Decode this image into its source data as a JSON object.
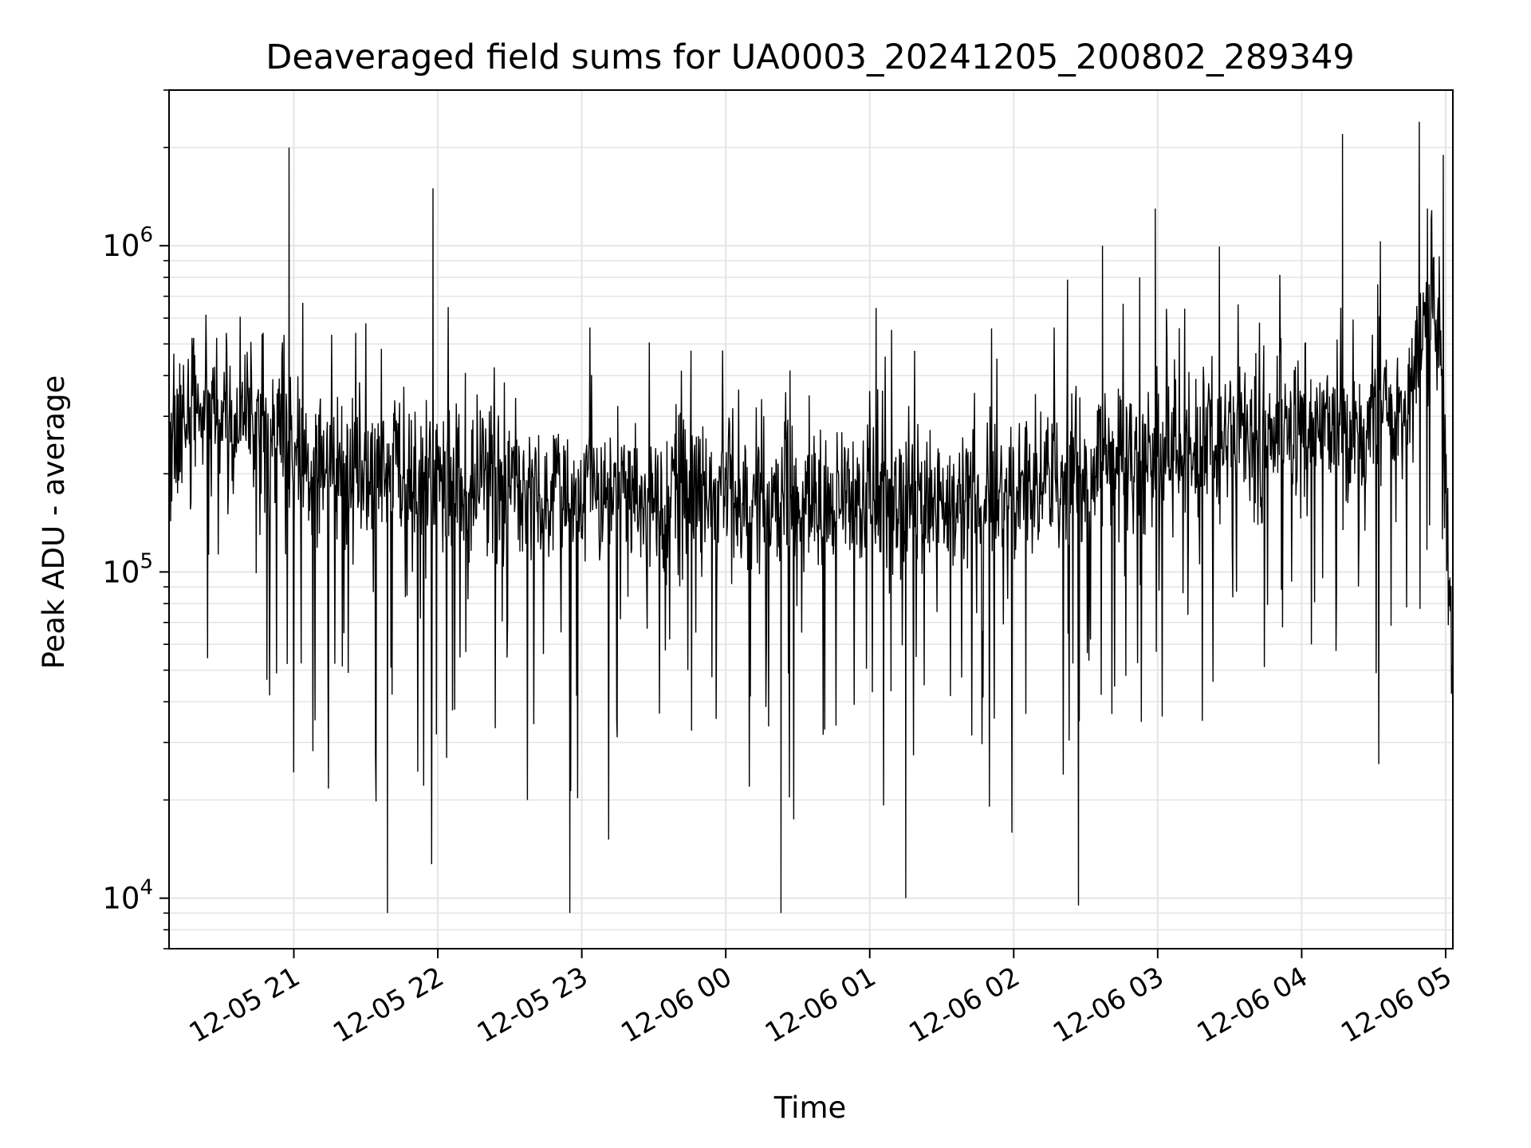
{
  "chart_data": {
    "type": "line",
    "title": "Deaveraged field sums for UA0003_20241205_200802_289349",
    "xlabel": "Time",
    "ylabel": "Peak ADU - average",
    "yscale": "log",
    "ylim": [
      7000,
      3000000
    ],
    "xlim": [
      "2024-12-05 20:08",
      "2024-12-06 05:03"
    ],
    "grid": true,
    "colors": {
      "line": "#000000",
      "grid": "#e5e5e5",
      "axes": "#000000"
    },
    "x_tick_labels": [
      "12-05 21",
      "12-05 22",
      "12-05 23",
      "12-06 00",
      "12-06 01",
      "12-06 02",
      "12-06 03",
      "12-06 04",
      "12-06 05"
    ],
    "x_ticks": [
      "2024-12-05 21:00",
      "2024-12-05 22:00",
      "2024-12-05 23:00",
      "2024-12-06 00:00",
      "2024-12-06 01:00",
      "2024-12-06 02:00",
      "2024-12-06 03:00",
      "2024-12-06 04:00",
      "2024-12-06 05:00"
    ],
    "y_tick_labels": [
      {
        "base": "10",
        "exp": "4",
        "value": 10000
      },
      {
        "base": "10",
        "exp": "5",
        "value": 100000
      },
      {
        "base": "10",
        "exp": "6",
        "value": 1000000
      }
    ],
    "series": [
      {
        "x": [
          "2024-12-05 20:08",
          "2024-12-05 20:15",
          "2024-12-05 20:20",
          "2024-12-05 20:25",
          "2024-12-05 20:30",
          "2024-12-05 20:35",
          "2024-12-05 20:40",
          "2024-12-05 20:45",
          "2024-12-05 20:50",
          "2024-12-05 20:55",
          "2024-12-05 21:00",
          "2024-12-05 21:05",
          "2024-12-05 21:10",
          "2024-12-05 21:15",
          "2024-12-05 21:20",
          "2024-12-05 21:25",
          "2024-12-05 21:30",
          "2024-12-05 21:35",
          "2024-12-05 21:40",
          "2024-12-05 21:45",
          "2024-12-05 21:50",
          "2024-12-05 21:55",
          "2024-12-05 22:00",
          "2024-12-05 22:05",
          "2024-12-05 22:10",
          "2024-12-05 22:15",
          "2024-12-05 22:20",
          "2024-12-05 22:25",
          "2024-12-05 22:30",
          "2024-12-05 22:35",
          "2024-12-05 22:40",
          "2024-12-05 22:45",
          "2024-12-05 22:50",
          "2024-12-05 22:55",
          "2024-12-05 23:00",
          "2024-12-05 23:05",
          "2024-12-05 23:10",
          "2024-12-05 23:15",
          "2024-12-05 23:20",
          "2024-12-05 23:25",
          "2024-12-05 23:30",
          "2024-12-05 23:35",
          "2024-12-05 23:40",
          "2024-12-05 23:45",
          "2024-12-05 23:50",
          "2024-12-05 23:55",
          "2024-12-06 00:00",
          "2024-12-06 00:05",
          "2024-12-06 00:10",
          "2024-12-06 00:15",
          "2024-12-06 00:20",
          "2024-12-06 00:25",
          "2024-12-06 00:30",
          "2024-12-06 00:35",
          "2024-12-06 00:40",
          "2024-12-06 00:45",
          "2024-12-06 00:50",
          "2024-12-06 00:55",
          "2024-12-06 01:00",
          "2024-12-06 01:05",
          "2024-12-06 01:10",
          "2024-12-06 01:15",
          "2024-12-06 01:20",
          "2024-12-06 01:25",
          "2024-12-06 01:30",
          "2024-12-06 01:35",
          "2024-12-06 01:40",
          "2024-12-06 01:45",
          "2024-12-06 01:50",
          "2024-12-06 01:55",
          "2024-12-06 02:00",
          "2024-12-06 02:05",
          "2024-12-06 02:10",
          "2024-12-06 02:15",
          "2024-12-06 02:20",
          "2024-12-06 02:25",
          "2024-12-06 02:30",
          "2024-12-06 02:35",
          "2024-12-06 02:40",
          "2024-12-06 02:45",
          "2024-12-06 02:50",
          "2024-12-06 02:55",
          "2024-12-06 03:00",
          "2024-12-06 03:05",
          "2024-12-06 03:10",
          "2024-12-06 03:15",
          "2024-12-06 03:20",
          "2024-12-06 03:25",
          "2024-12-06 03:30",
          "2024-12-06 03:35",
          "2024-12-06 03:40",
          "2024-12-06 03:45",
          "2024-12-06 03:50",
          "2024-12-06 03:55",
          "2024-12-06 04:00",
          "2024-12-06 04:05",
          "2024-12-06 04:10",
          "2024-12-06 04:15",
          "2024-12-06 04:20",
          "2024-12-06 04:25",
          "2024-12-06 04:30",
          "2024-12-06 04:35",
          "2024-12-06 04:40",
          "2024-12-06 04:45",
          "2024-12-06 04:50",
          "2024-12-06 04:55",
          "2024-12-06 05:00",
          "2024-12-06 05:03"
        ],
        "y": [
          300000,
          280000,
          300000,
          290000,
          310000,
          300000,
          320000,
          300000,
          280000,
          290000,
          220000,
          210000,
          200000,
          210000,
          190000,
          200000,
          180000,
          200000,
          190000,
          210000,
          190000,
          180000,
          200000,
          190000,
          180000,
          190000,
          200000,
          180000,
          190000,
          170000,
          180000,
          160000,
          190000,
          170000,
          180000,
          200000,
          170000,
          180000,
          160000,
          180000,
          170000,
          150000,
          190000,
          160000,
          170000,
          180000,
          190000,
          160000,
          150000,
          170000,
          160000,
          180000,
          150000,
          170000,
          160000,
          170000,
          160000,
          150000,
          170000,
          160000,
          170000,
          180000,
          160000,
          170000,
          150000,
          160000,
          170000,
          180000,
          160000,
          170000,
          170000,
          190000,
          180000,
          200000,
          190000,
          210000,
          200000,
          220000,
          210000,
          230000,
          220000,
          240000,
          230000,
          250000,
          240000,
          230000,
          250000,
          240000,
          260000,
          250000,
          240000,
          260000,
          270000,
          250000,
          260000,
          270000,
          280000,
          260000,
          290000,
          270000,
          300000,
          290000,
          310000,
          320000,
          600000,
          900000,
          200000,
          42000
        ],
        "max_spikes": [
          {
            "x": "2024-12-05 20:58",
            "y": 2000000
          },
          {
            "x": "2024-12-05 21:58",
            "y": 1500000
          },
          {
            "x": "2024-12-06 02:37",
            "y": 1000000
          },
          {
            "x": "2024-12-06 02:59",
            "y": 1300000
          },
          {
            "x": "2024-12-06 04:17",
            "y": 2200000
          },
          {
            "x": "2024-12-06 04:49",
            "y": 2400000
          },
          {
            "x": "2024-12-06 04:59",
            "y": 1900000
          }
        ],
        "min_dips": [
          {
            "x": "2024-12-05 21:39",
            "y": 9000
          },
          {
            "x": "2024-12-05 22:55",
            "y": 9000
          },
          {
            "x": "2024-12-06 00:23",
            "y": 9000
          },
          {
            "x": "2024-12-06 01:15",
            "y": 10000
          },
          {
            "x": "2024-12-06 02:27",
            "y": 9500
          }
        ]
      }
    ]
  }
}
